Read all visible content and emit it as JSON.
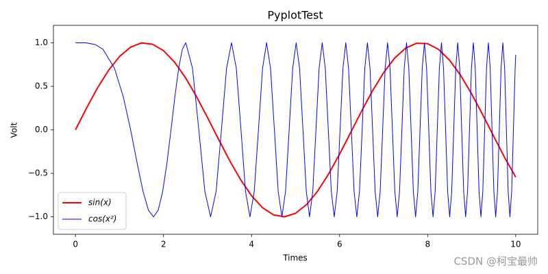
{
  "chart_data": {
    "type": "line",
    "title": "PyplotTest",
    "x_label": "Times",
    "y_label": "Volt",
    "xlim": [
      -0.5,
      10.5
    ],
    "ylim": [
      -1.2,
      1.2
    ],
    "xticks": [
      0,
      2,
      4,
      6,
      8,
      10
    ],
    "yticks": [
      {
        "value": -1,
        "label": "−1.0"
      },
      {
        "value": -0.5,
        "label": "−0.5"
      },
      {
        "value": 0,
        "label": "0.0"
      },
      0.5,
      {
        "value": 1,
        "label": "1.0"
      }
    ],
    "legend": "lower left",
    "watermark": "CSDN @柯宝最帅",
    "series": [
      {
        "name": "sin(x)",
        "color": "red",
        "linewidth": 2,
        "x": [
          0,
          0.25,
          0.5,
          0.75,
          1,
          1.25,
          1.5,
          1.75,
          2,
          2.25,
          2.5,
          2.75,
          3,
          3.25,
          3.5,
          3.75,
          4,
          4.25,
          4.5,
          4.75,
          5,
          5.25,
          5.5,
          5.75,
          6,
          6.25,
          6.5,
          6.75,
          7,
          7.25,
          7.5,
          7.75,
          8,
          8.25,
          8.5,
          8.75,
          9,
          9.25,
          9.5,
          9.75,
          10
        ],
        "values": [
          0,
          0.2474,
          0.4794,
          0.6816,
          0.8415,
          0.949,
          0.9975,
          0.984,
          0.9093,
          0.7781,
          0.5985,
          0.3817,
          0.1411,
          -0.1082,
          -0.3508,
          -0.5716,
          -0.7568,
          -0.895,
          -0.9775,
          -0.9993,
          -0.9589,
          -0.8589,
          -0.7055,
          -0.5083,
          -0.2794,
          -0.0332,
          0.2151,
          0.45,
          0.657,
          0.8231,
          0.938,
          0.9946,
          0.9894,
          0.9226,
          0.7985,
          0.6247,
          0.4121,
          0.1743,
          -0.0752,
          -0.3195,
          -0.544
        ]
      },
      {
        "name": "cos(x²)",
        "color": "blue",
        "linewidth": 1,
        "x": [
          0,
          0.25,
          0.45,
          0.6267,
          0.8862,
          1.0854,
          1.2533,
          1.4013,
          1.535,
          1.658,
          1.7725,
          1.88,
          1.9817,
          2.0784,
          2.1708,
          2.2594,
          2.3448,
          2.427,
          2.5066,
          2.6587,
          2.8025,
          2.9393,
          3.07,
          3.1953,
          3.316,
          3.4324,
          3.5449,
          3.654,
          3.76,
          3.863,
          3.9633,
          4.0612,
          4.1568,
          4.2502,
          4.3416,
          4.4311,
          4.5189,
          4.605,
          4.6895,
          4.7725,
          4.8541,
          4.9343,
          5.0133,
          5.091,
          5.1675,
          5.243,
          5.3174,
          5.3907,
          5.4631,
          5.5345,
          5.605,
          5.6746,
          5.7434,
          5.8114,
          5.8785,
          5.945,
          6.0107,
          6.0757,
          6.14,
          6.2036,
          6.2666,
          6.3289,
          6.3907,
          6.4518,
          6.5124,
          6.5724,
          6.6319,
          6.6909,
          6.7493,
          6.8072,
          6.8647,
          6.9217,
          6.9782,
          7.0342,
          7.0898,
          7.145,
          7.1997,
          7.2541,
          7.308,
          7.3616,
          7.4147,
          7.4675,
          7.5199,
          7.5719,
          7.6236,
          7.675,
          7.726,
          7.7766,
          7.8269,
          7.8769,
          7.9267,
          7.9761,
          8.0251,
          8.0739,
          8.1224,
          8.1706,
          8.2185,
          8.2662,
          8.3135,
          8.3606,
          8.4075,
          8.4541,
          8.5004,
          8.5465,
          8.5923,
          8.6379,
          8.6832,
          8.7283,
          8.7732,
          8.8179,
          8.8623,
          8.9065,
          8.9505,
          8.9942,
          9.0378,
          9.0811,
          9.1243,
          9.1672,
          9.2099,
          9.2525,
          9.2948,
          9.337,
          9.3789,
          9.4207,
          9.4623,
          9.5037,
          9.545,
          9.586,
          9.6269,
          9.6676,
          9.7081,
          9.7485,
          9.7887,
          9.8287,
          9.8686,
          9.9083,
          9.9479,
          9.9873,
          10
        ],
        "values": [
          1,
          0.998,
          0.9796,
          0.9239,
          0.7071,
          0.3827,
          0,
          -0.3827,
          -0.7071,
          -0.9239,
          -1,
          -0.9239,
          -0.7071,
          -0.3827,
          0,
          0.3827,
          0.7071,
          0.9239,
          1,
          0.7071,
          0,
          -0.7071,
          -1,
          -0.7071,
          0,
          0.7071,
          1,
          0.7071,
          0,
          -0.7071,
          -1,
          -0.7071,
          0,
          0.7071,
          1,
          0.7071,
          0,
          -0.7071,
          -1,
          -0.7071,
          0,
          0.7071,
          1,
          0.7071,
          0,
          -0.7071,
          -1,
          -0.7071,
          0,
          0.7071,
          1,
          0.7071,
          0,
          -0.7071,
          -1,
          -0.7071,
          0,
          0.7071,
          1,
          0.7071,
          0,
          -0.7071,
          -1,
          -0.7071,
          0,
          0.7071,
          1,
          0.7071,
          0,
          -0.7071,
          -1,
          -0.7071,
          0,
          0.7071,
          1,
          0.7071,
          0,
          -0.7071,
          -1,
          -0.7071,
          0,
          0.7071,
          1,
          0.7071,
          0,
          -0.7071,
          -1,
          -0.7071,
          0,
          0.7071,
          1,
          0.7071,
          0,
          -0.7071,
          -1,
          -0.7071,
          0,
          0.7071,
          1,
          0.7071,
          0,
          -0.7071,
          -1,
          -0.7071,
          0,
          0.7071,
          1,
          0.7071,
          0,
          -0.7071,
          -1,
          -0.7071,
          0,
          0.7071,
          1,
          0.7071,
          0,
          -0.7071,
          -1,
          -0.7071,
          0,
          0.7071,
          1,
          0.7071,
          0,
          -0.7071,
          -1,
          -0.7071,
          0,
          0.7071,
          1,
          0.7071,
          0,
          -0.7071,
          -1,
          -0.7071,
          0,
          0.7071,
          0.8623
        ]
      }
    ]
  }
}
